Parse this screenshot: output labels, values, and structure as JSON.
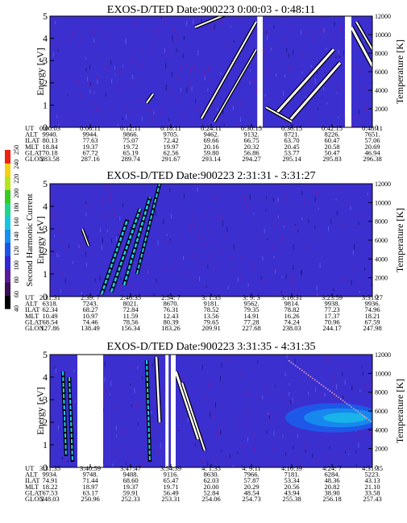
{
  "chart_data": [
    {
      "type": "heatmap",
      "title": "EXOS-D/TED",
      "date_label": "Date:900223",
      "time_range": "0:00:03 - 0:48:11",
      "ylabel": "Energy [eV]",
      "y2label": "Temperature [K]",
      "ylim": [
        0,
        5
      ],
      "y2lim": [
        0,
        12000
      ],
      "yticks": [
        "0",
        "1",
        "2",
        "3",
        "4",
        "5"
      ],
      "y2ticks": [
        "0",
        "2000",
        "4000",
        "6000",
        "8000",
        "10000",
        "12000"
      ],
      "row_labels": [
        "UT",
        "ALT",
        "ILAT",
        "MLT",
        "GLAT",
        "GLON"
      ],
      "columns": [
        [
          "0:00:03",
          "9940.",
          "80.13",
          "18.84",
          "70.18",
          "283.58"
        ],
        [
          "0:06:11",
          "9944.",
          "77.63",
          "19.37",
          "67.72",
          "287.16"
        ],
        [
          "0:12:11",
          "9866.",
          "75.07",
          "19.72",
          "65.19",
          "289.74"
        ],
        [
          "0:18:11",
          "9705.",
          "72.42",
          "19.97",
          "62.56",
          "291.67"
        ],
        [
          "0:24:11",
          "9462.",
          "69.66",
          "20.16",
          "59.80",
          "293.14"
        ],
        [
          "0:30:15",
          "9132.",
          "66.75",
          "20.32",
          "56.86",
          "294.27"
        ],
        [
          "0:36:15",
          "8721.",
          "63.70",
          "20.45",
          "53.77",
          "295.14"
        ],
        [
          "0:42:15",
          "8226.",
          "60.47",
          "20.58",
          "50.47",
          "295.83"
        ],
        [
          "0:48:11",
          "7651.",
          "57.06",
          "20.69",
          "46.94",
          "296.38"
        ]
      ]
    },
    {
      "type": "heatmap",
      "title": "EXOS-D/TED",
      "date_label": "Date:900223",
      "time_range": "2:31:31 - 3:31:27",
      "ylabel": "Energy [eV]",
      "y2label": "Temperature [K]",
      "ylim": [
        0,
        5
      ],
      "y2lim": [
        0,
        12000
      ],
      "yticks": [
        "0",
        "1",
        "2",
        "3",
        "4",
        "5"
      ],
      "y2ticks": [
        "0",
        "2000",
        "4000",
        "6000",
        "8000",
        "10000",
        "12000"
      ],
      "row_labels": [
        "UT",
        "ALT",
        "ILAT",
        "MLT",
        "GLAT",
        "GLON"
      ],
      "columns": [
        [
          "2:31:31",
          "6318.",
          "62.34",
          "10.49",
          "68.54",
          "127.86"
        ],
        [
          "2:39: 7",
          "7243.",
          "68.27",
          "10.97",
          "74.46",
          "138.49"
        ],
        [
          "2:46:35",
          "8021.",
          "72.84",
          "11.59",
          "78.56",
          "156.34"
        ],
        [
          "2:54: 7",
          "8670.",
          "76.31",
          "12.43",
          "80.39",
          "183.26"
        ],
        [
          "3: 1:35",
          "9181.",
          "78.52",
          "13.56",
          "79.65",
          "209.91"
        ],
        [
          "3: 9: 3",
          "9562.",
          "79.35",
          "14.91",
          "77.28",
          "227.68"
        ],
        [
          "3:16:31",
          "9814.",
          "78.82",
          "16.26",
          "74.24",
          "238.03"
        ],
        [
          "3:23:59",
          "9938.",
          "77.23",
          "17.37",
          "70.96",
          "244.17"
        ],
        [
          "3:31:27",
          "9936.",
          "74.96",
          "18.21",
          "67.59",
          "247.98"
        ]
      ],
      "colorbar": {
        "label": "Second Harmonic Current",
        "ticks": [
          "40",
          "60",
          "80",
          "100",
          "120",
          "140",
          "160",
          "180",
          "200",
          "220",
          "240",
          "250"
        ]
      }
    },
    {
      "type": "heatmap",
      "title": "EXOS-D/TED",
      "date_label": "Date:900223",
      "time_range": "3:31:35 - 4:31:35",
      "ylabel": "Energy [eV]",
      "y2label": "Temperature [K]",
      "ylim": [
        0,
        5
      ],
      "y2lim": [
        0,
        12000
      ],
      "yticks": [
        "0",
        "1",
        "2",
        "3",
        "4",
        "5"
      ],
      "y2ticks": [
        "0",
        "2000",
        "4000",
        "6000",
        "8000",
        "10000",
        "12000"
      ],
      "row_labels": [
        "UT",
        "ALT",
        "ILAT",
        "MLT",
        "GLAT",
        "GLON"
      ],
      "columns": [
        [
          "3:31:35",
          "9934.",
          "74.91",
          "18.22",
          "67.53",
          "248.03"
        ],
        [
          "3:40:59",
          "9748.",
          "71.44",
          "18.97",
          "63.17",
          "250.96"
        ],
        [
          "3:47:47",
          "9488.",
          "68.60",
          "19.37",
          "59.91",
          "252.33"
        ],
        [
          "3:54:39",
          "9116.",
          "65.47",
          "19.71",
          "56.49",
          "253.31"
        ],
        [
          "4: 1:35",
          "8630.",
          "62.03",
          "20.00",
          "52.84",
          "254.06"
        ],
        [
          "4: 9:11",
          "7966.",
          "57.87",
          "20.29",
          "48.54",
          "254.73"
        ],
        [
          "4:16:39",
          "7181.",
          "53.34",
          "20.56",
          "43.94",
          "255.38"
        ],
        [
          "4:24: 7",
          "6284.",
          "48.36",
          "20.82",
          "38.90",
          "256.18"
        ],
        [
          "4:31:35",
          "5223.",
          "43.13",
          "21.10",
          "33.58",
          "257.43"
        ]
      ]
    }
  ]
}
